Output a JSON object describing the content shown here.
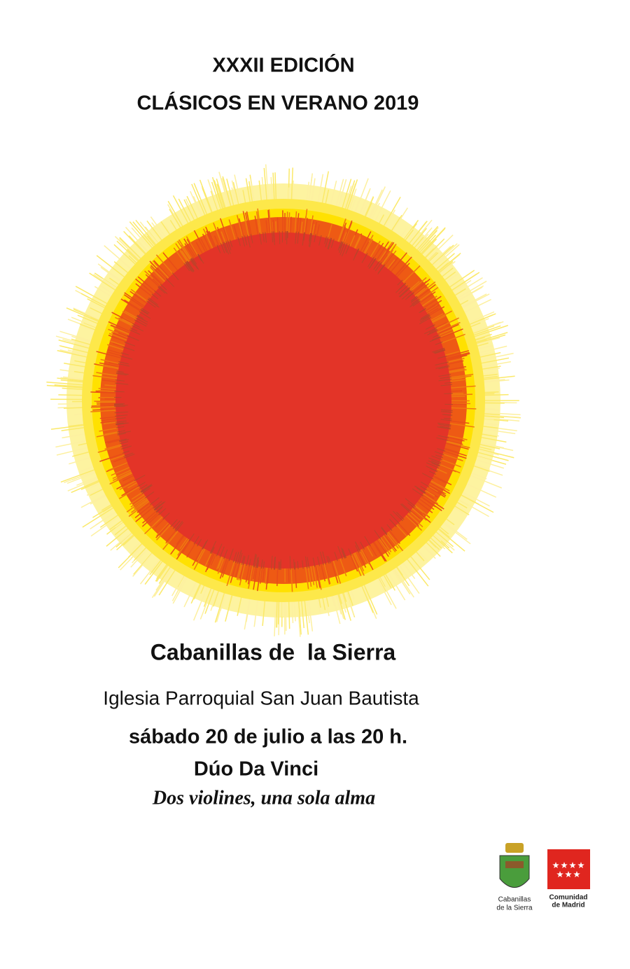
{
  "poster": {
    "edition": "XXXII EDICIÓN",
    "title": "CLÁSICOS EN VERANO 2019",
    "town": "Cabanillas de  la Sierra",
    "venue": "Iglesia Parroquial San Juan Bautista",
    "date": "sábado 20 de julio a las 20 h.",
    "performers": "Dúo Da Vinci",
    "program": "Dos violines, una sola alma"
  },
  "logos": {
    "town_logo": [
      "Cabanillas",
      "de la Sierra"
    ],
    "region_logo": [
      "Comunidad",
      "de Madrid"
    ]
  }
}
